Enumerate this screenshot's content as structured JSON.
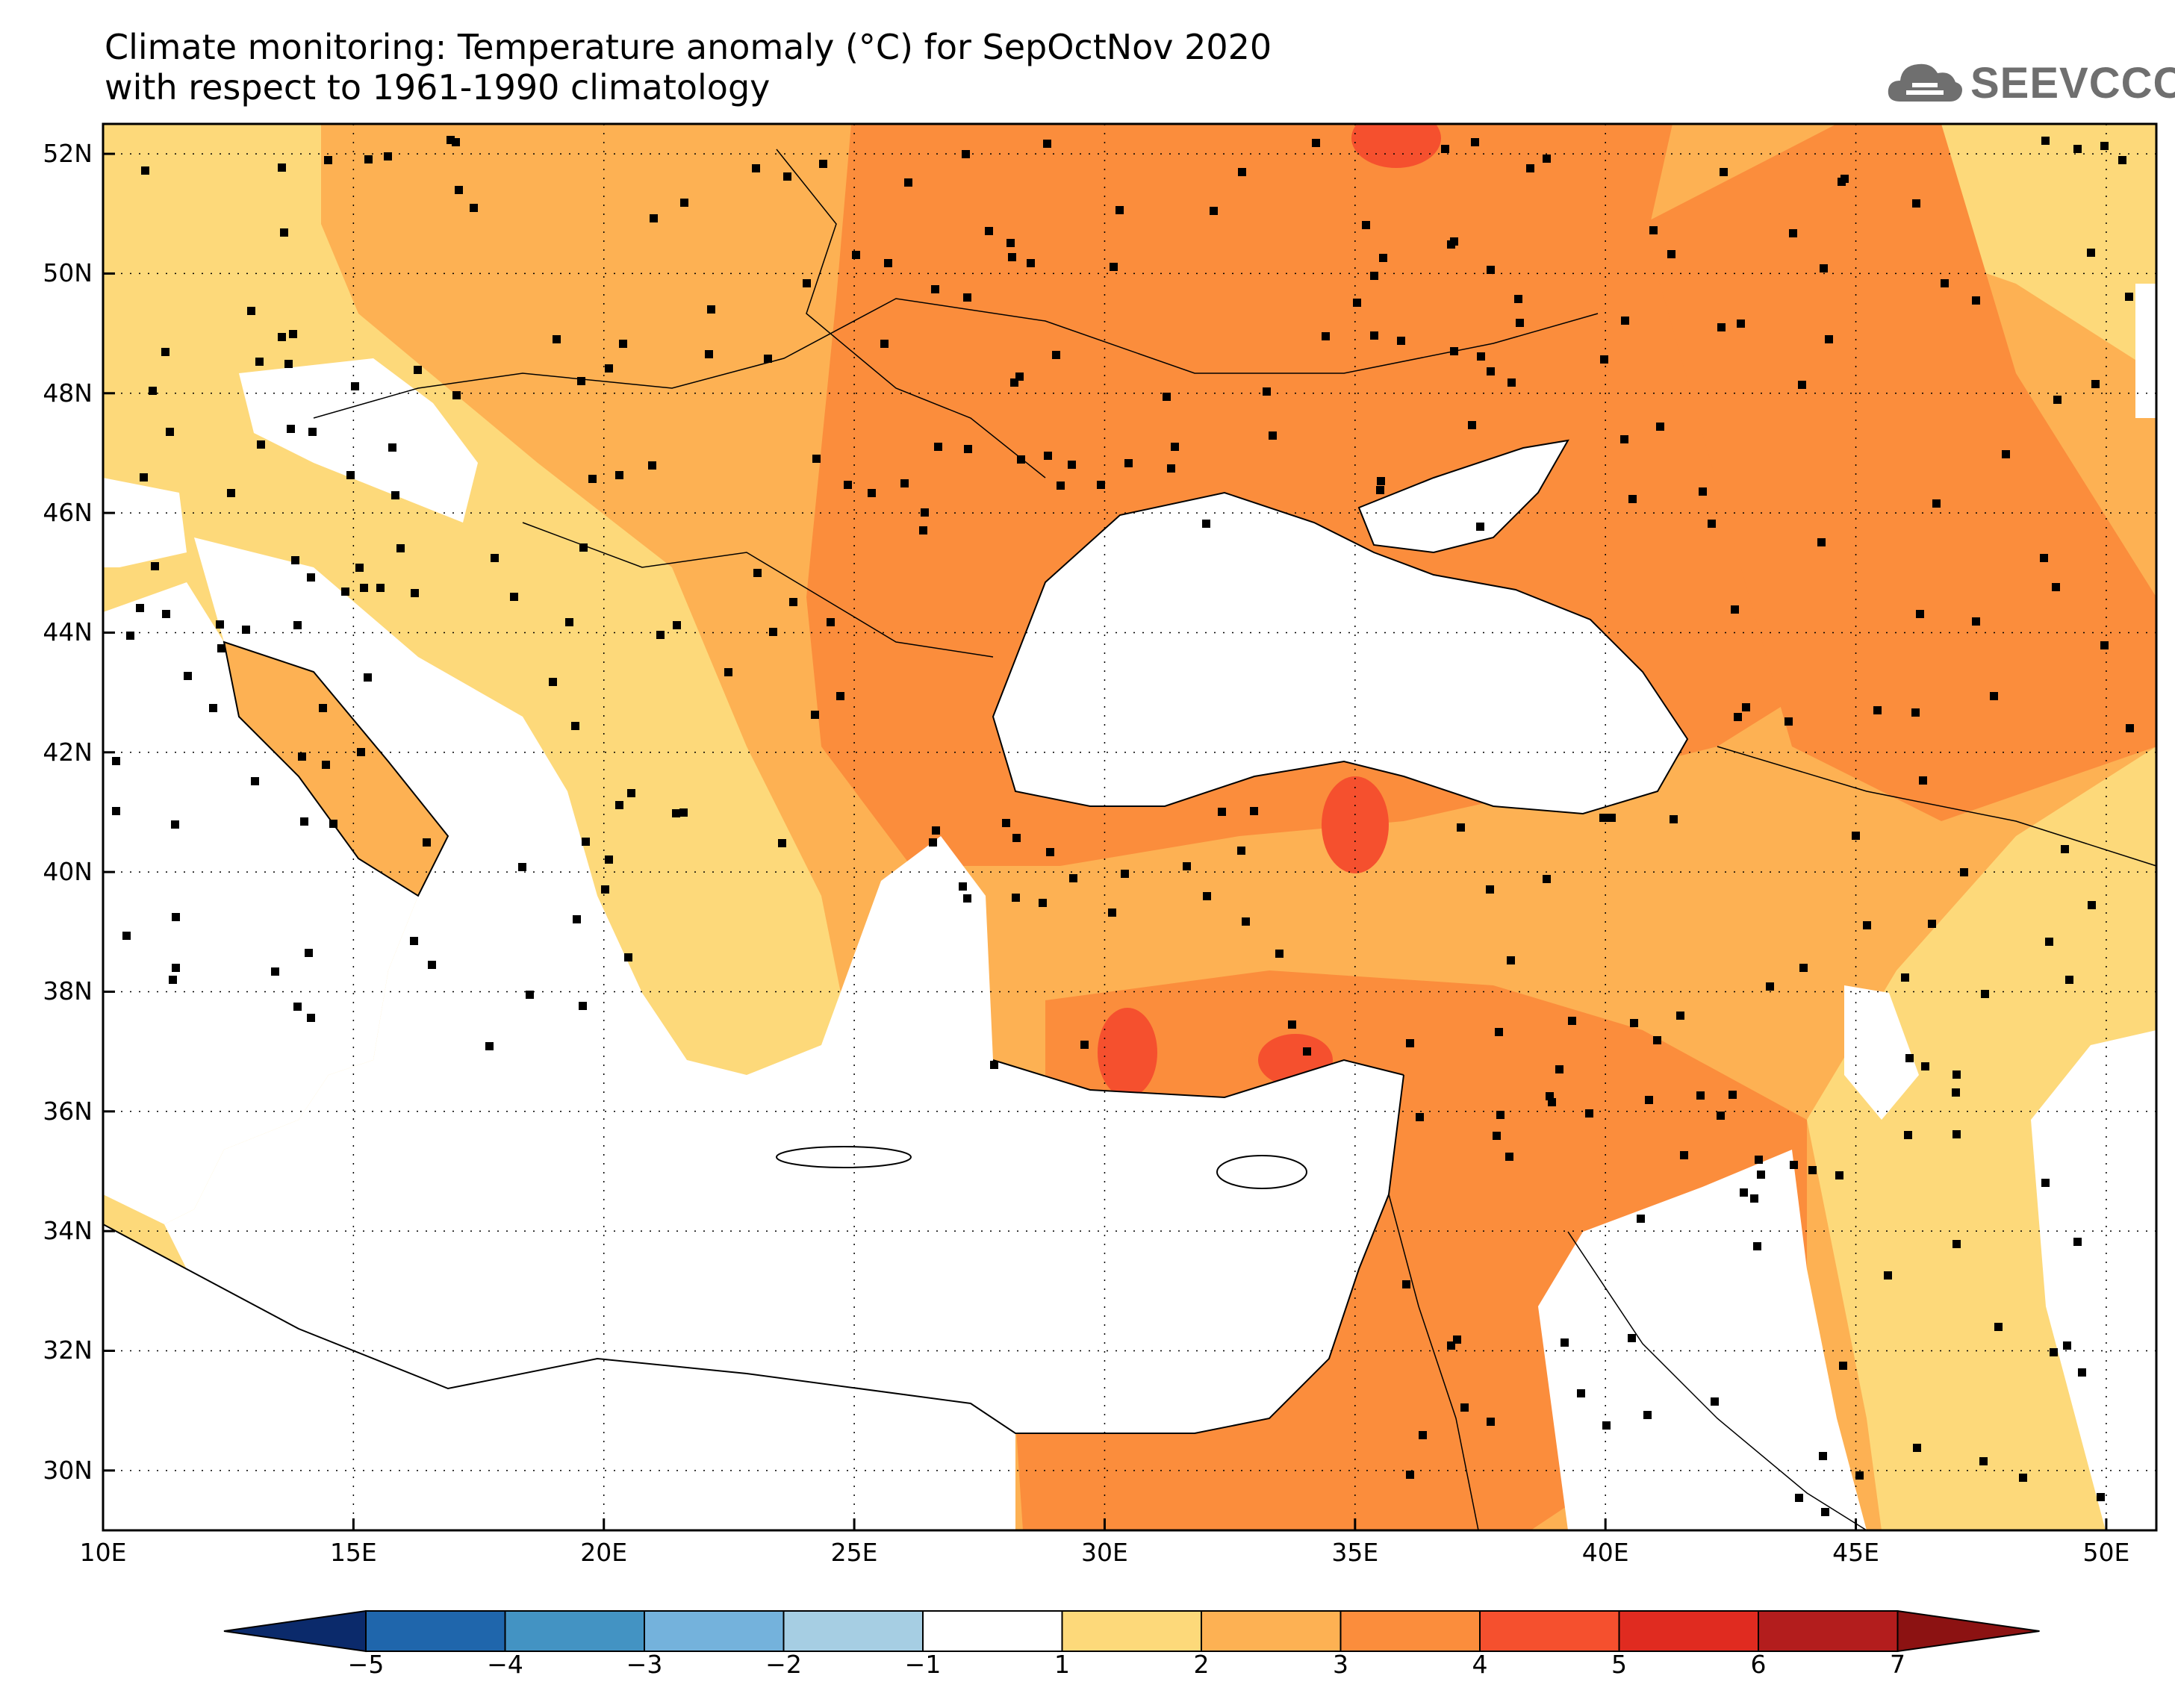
{
  "title": {
    "line1": "Climate monitoring: Temperature anomaly (°C) for SepOctNov 2020",
    "line2": "with respect to 1961-1990 climatology"
  },
  "logo": {
    "text": "SEEVCCC",
    "icon": "cloud-icon",
    "color": "#6f6f6f"
  },
  "map": {
    "lon_range": [
      10,
      51
    ],
    "lat_range": [
      29,
      52.5
    ],
    "lon_ticks": [
      "10E",
      "15E",
      "20E",
      "25E",
      "30E",
      "35E",
      "40E",
      "45E",
      "50E"
    ],
    "lat_ticks": [
      "30N",
      "32N",
      "34N",
      "36N",
      "38N",
      "40N",
      "42N",
      "44N",
      "46N",
      "48N",
      "50N",
      "52N"
    ],
    "grid": "dotted"
  },
  "colorbar": {
    "labels": [
      "-5",
      "-4",
      "-3",
      "-2",
      "-1",
      "1",
      "2",
      "3",
      "4",
      "5",
      "6",
      "7"
    ],
    "colors": [
      "#0b2a6b",
      "#1f66ac",
      "#4393c3",
      "#74b2dc",
      "#a6cee3",
      "#ffffff",
      "#fdd97a",
      "#fdb153",
      "#fb8d3c",
      "#f5502e",
      "#e02b20",
      "#b31d1d",
      "#8c1212"
    ]
  },
  "fill_colors": {
    "c1": "#fdd97a",
    "c2": "#fdb153",
    "c3": "#fb8d3c",
    "c4": "#f5502e"
  }
}
